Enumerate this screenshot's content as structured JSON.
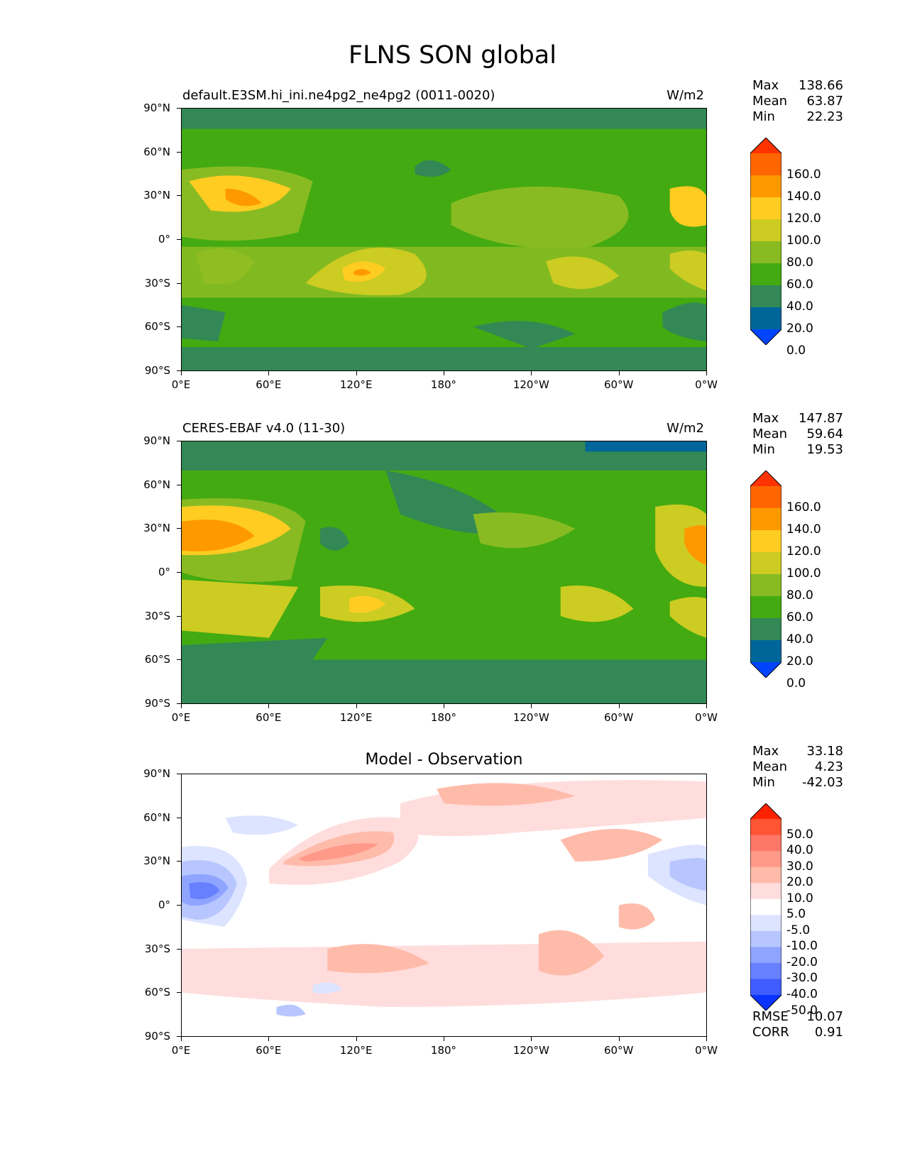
{
  "title": "FLNS SON global",
  "panels": [
    {
      "title": "default.E3SM.hi_ini.ne4pg2_ne4pg2 (0011-0020)",
      "units": "W/m2",
      "stats": [
        {
          "label": "Max",
          "value": "138.66"
        },
        {
          "label": "Mean",
          "value": "63.87"
        },
        {
          "label": "Min",
          "value": "22.23"
        }
      ],
      "colorbar": {
        "labels": [
          "160.0",
          "140.0",
          "120.0",
          "100.0",
          "80.0",
          "60.0",
          "40.0",
          "20.0",
          "0.0"
        ],
        "colors": [
          "#ff3300",
          "#ff6600",
          "#ff9900",
          "#ffcc22",
          "#cccc22",
          "#88bb22",
          "#44aa11",
          "#338855",
          "#006699",
          "#0044ff"
        ]
      }
    },
    {
      "title": "CERES-EBAF v4.0 (11-30)",
      "units": "W/m2",
      "stats": [
        {
          "label": "Max",
          "value": "147.87"
        },
        {
          "label": "Mean",
          "value": "59.64"
        },
        {
          "label": "Min",
          "value": "19.53"
        }
      ],
      "colorbar": {
        "labels": [
          "160.0",
          "140.0",
          "120.0",
          "100.0",
          "80.0",
          "60.0",
          "40.0",
          "20.0",
          "0.0"
        ],
        "colors": [
          "#ff3300",
          "#ff6600",
          "#ff9900",
          "#ffcc22",
          "#cccc22",
          "#88bb22",
          "#44aa11",
          "#338855",
          "#006699",
          "#0044ff"
        ]
      }
    },
    {
      "title": "Model - Observation",
      "units": "",
      "stats": [
        {
          "label": "Max",
          "value": "33.18"
        },
        {
          "label": "Mean",
          "value": "4.23"
        },
        {
          "label": "Min",
          "value": "-42.03"
        }
      ],
      "extra_stats": [
        {
          "label": "RMSE",
          "value": "10.07"
        },
        {
          "label": "CORR",
          "value": "0.91"
        }
      ],
      "colorbar": {
        "labels": [
          "50.0",
          "40.0",
          "30.0",
          "20.0",
          "10.0",
          "5.0",
          "-5.0",
          "-10.0",
          "-20.0",
          "-30.0",
          "-40.0",
          "-50.0"
        ],
        "colors": [
          "#ff2200",
          "#ff5533",
          "#ff7766",
          "#ff9988",
          "#ffbbaa",
          "#ffdddd",
          "#ffffff",
          "#dde4ff",
          "#b8c6ff",
          "#8fa4ff",
          "#6680ff",
          "#3f5cff",
          "#0a33ff"
        ]
      }
    }
  ],
  "axes": {
    "y_ticks": [
      "90°N",
      "60°N",
      "30°N",
      "0°",
      "30°S",
      "60°S",
      "90°S"
    ],
    "x_ticks": [
      "0°E",
      "60°E",
      "120°E",
      "180°",
      "120°W",
      "60°W",
      "0°W"
    ]
  }
}
